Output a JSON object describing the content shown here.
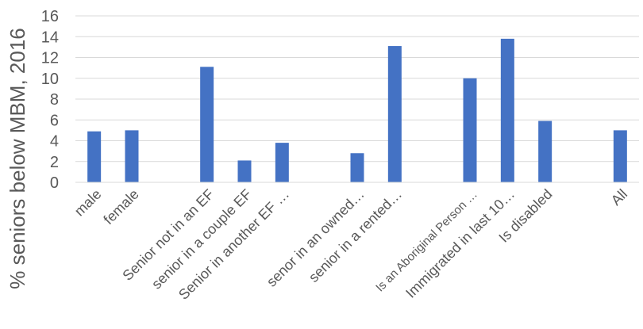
{
  "chart_data": {
    "type": "bar",
    "title": "",
    "xlabel": "",
    "ylabel": "% seniors below MBM, 2016",
    "ylim": [
      0,
      16
    ],
    "yticks": [
      0,
      2,
      4,
      6,
      8,
      10,
      12,
      14,
      16
    ],
    "grid": true,
    "legend": "none",
    "bar_color": "#4472C4",
    "categories": [
      "male",
      "female",
      "",
      "Senior not in an EF",
      "senior in a couple EF",
      "Senior in another EF …",
      "",
      "senor in an owned…",
      "senior in a rented…",
      "",
      "Is an Aboriginal Person     …",
      "Immigrated in last 10…",
      "Is disabled",
      "",
      "All"
    ],
    "values": [
      4.9,
      5.0,
      null,
      11.1,
      2.1,
      3.8,
      null,
      2.8,
      13.1,
      null,
      10.0,
      13.8,
      5.9,
      null,
      5.0
    ]
  }
}
